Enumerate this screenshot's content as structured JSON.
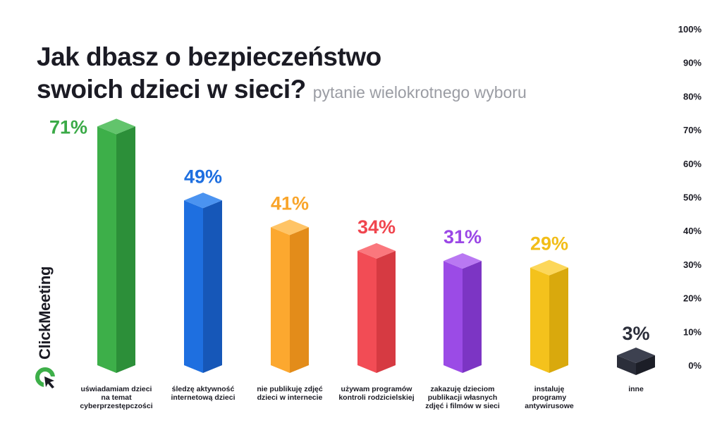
{
  "header": {
    "title_line1": "Jak dbasz o bezpieczeństwo",
    "title_line2": "swoich dzieci w sieci?",
    "subtitle": "pytanie wielokrotnego wyboru"
  },
  "brand": {
    "name": "ClickMeeting",
    "icon": "clickmeeting-logo-icon"
  },
  "chart_data": {
    "type": "bar",
    "title": "Jak dbasz o bezpieczeństwo swoich dzieci w sieci?",
    "subtitle": "pytanie wielokrotnego wyboru",
    "categories": [
      [
        "uświadamiam dzieci",
        "na temat",
        "cyberprzestępczości"
      ],
      [
        "śledzę aktywność",
        "internetową dzieci"
      ],
      [
        "nie publikuję zdjęć",
        "dzieci w internecie"
      ],
      [
        "używam programów",
        "kontroli rodzicielskiej"
      ],
      [
        "zakazuję dzieciom",
        "publikacji własnych",
        "zdjęć i filmów w sieci"
      ],
      [
        "instaluję",
        "programy",
        "antywirusowe"
      ],
      [
        "inne"
      ]
    ],
    "values": [
      71,
      49,
      41,
      34,
      31,
      29,
      3
    ],
    "value_labels": [
      "71%",
      "49%",
      "41%",
      "34%",
      "31%",
      "29%",
      "3%"
    ],
    "colors": [
      {
        "front": "#3daf49",
        "side": "#2c8f39",
        "top": "#62c46c",
        "label": "#3aaa47"
      },
      {
        "front": "#1e6fe0",
        "side": "#1657b8",
        "top": "#4b93f0",
        "label": "#1e6fe0"
      },
      {
        "front": "#fca82f",
        "side": "#e38c1a",
        "top": "#ffc466",
        "label": "#f9a52b"
      },
      {
        "front": "#f24c55",
        "side": "#d63a42",
        "top": "#fa777d",
        "label": "#f0454e"
      },
      {
        "front": "#9b4be6",
        "side": "#7c35c4",
        "top": "#b978f2",
        "label": "#9b47e6"
      },
      {
        "front": "#f4c21c",
        "side": "#d9a90d",
        "top": "#fcd75a",
        "label": "#f2bd18"
      },
      {
        "front": "#2b2e3a",
        "side": "#1c1e27",
        "top": "#3d4150",
        "label": "#2b2e3a"
      }
    ],
    "y_ticks": [
      "0%",
      "10%",
      "20%",
      "30%",
      "40%",
      "50%",
      "60%",
      "70%",
      "80%",
      "90%",
      "100%"
    ],
    "ylim": [
      0,
      100
    ],
    "xlabel": "",
    "ylabel": "",
    "grid": false,
    "legend": "none",
    "axis_position": "right"
  }
}
